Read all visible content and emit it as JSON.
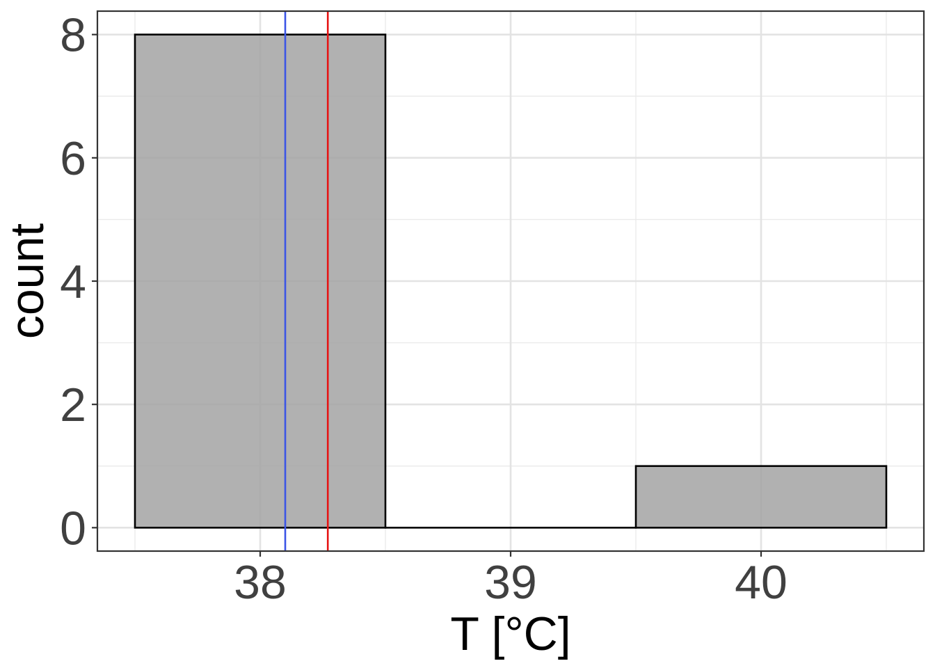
{
  "chart_data": {
    "type": "histogram",
    "xlabel": "T [°C]",
    "ylabel": "count",
    "xlim": [
      37.35,
      40.65
    ],
    "ylim": [
      -0.38,
      8.38
    ],
    "x_ticks": [
      38,
      39,
      40
    ],
    "x_tick_labels": [
      "38",
      "39",
      "40"
    ],
    "y_ticks": [
      0,
      2,
      4,
      6,
      8
    ],
    "y_tick_labels": [
      "0",
      "2",
      "4",
      "6",
      "8"
    ],
    "bins": [
      {
        "x0": 37.5,
        "x1": 38.5,
        "count": 8
      },
      {
        "x0": 38.5,
        "x1": 39.5,
        "count": 0
      },
      {
        "x0": 39.5,
        "x1": 40.5,
        "count": 1
      }
    ],
    "vlines": [
      {
        "x": 38.1,
        "color": "#3b55e6"
      },
      {
        "x": 38.27,
        "color": "#e61414"
      }
    ],
    "bar_fill": "#a3a3a3",
    "bar_stroke": "#000000",
    "grid": true,
    "theme": "bw"
  }
}
